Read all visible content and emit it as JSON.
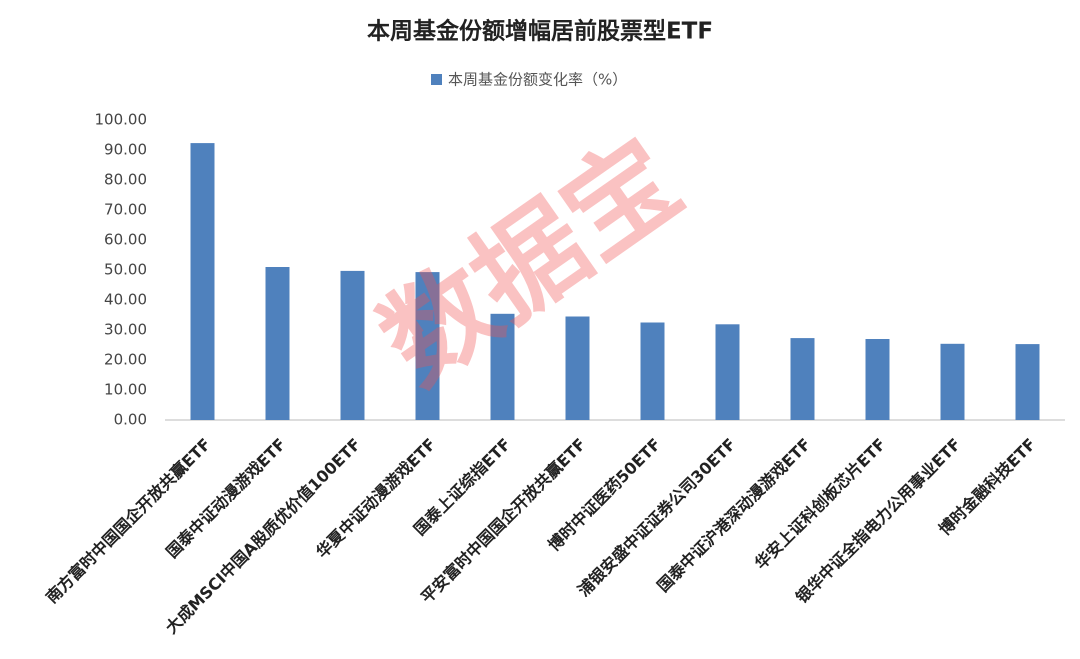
{
  "chart_data": {
    "type": "bar",
    "title": "本周基金份额增幅居前股票型ETF",
    "watermark": "数据宝",
    "categories": [
      "南方富时中国国企开放共赢ETF",
      "国泰中证动漫游戏ETF",
      "大成MSCI中国A股质优价值100ETF",
      "华夏中证动漫游戏ETF",
      "国泰上证综指ETF",
      "平安富时中国国企开放共赢ETF",
      "博时中证医药50ETF",
      "浦银安盛中证证券公司30ETF",
      "国泰中证沪港深动漫游戏ETF",
      "华安上证科创板芯片ETF",
      "银华中证全指电力公用事业ETF",
      "博时金融科技ETF"
    ],
    "series": [
      {
        "name": "本周基金份额变化率（%）",
        "color": "#4f81bd",
        "values": [
          92.3,
          51.0,
          49.7,
          49.3,
          35.4,
          34.5,
          32.5,
          31.9,
          27.3,
          27.0,
          25.4,
          25.3
        ]
      }
    ],
    "ylim": [
      0,
      100
    ],
    "yticks": [
      {
        "value": 0,
        "label": "0.00"
      },
      {
        "value": 10,
        "label": "10.00"
      },
      {
        "value": 20,
        "label": "20.00"
      },
      {
        "value": 30,
        "label": "30.00"
      },
      {
        "value": 40,
        "label": "40.00"
      },
      {
        "value": 50,
        "label": "50.00"
      },
      {
        "value": 60,
        "label": "60.00"
      },
      {
        "value": 70,
        "label": "70.00"
      },
      {
        "value": 80,
        "label": "80.00"
      },
      {
        "value": 90,
        "label": "90.00"
      },
      {
        "value": 100,
        "label": "100.00"
      }
    ],
    "grid": false
  }
}
